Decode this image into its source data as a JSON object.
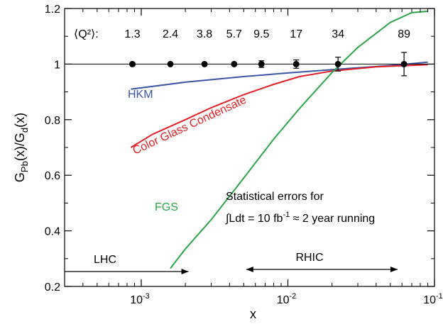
{
  "chart_data": {
    "type": "line",
    "xlabel": "x",
    "ylabel": "G_Pb(x)/G_d(x)",
    "xscale": "log",
    "xlim": [
      0.0003,
      0.1
    ],
    "ylim": [
      0.2,
      1.2
    ],
    "x_ticks": [
      {
        "value": 0.001,
        "base": "10",
        "exp": "-3"
      },
      {
        "value": 0.01,
        "base": "10",
        "exp": "-2"
      },
      {
        "value": 0.1,
        "base": "10",
        "exp": "-1"
      }
    ],
    "y_ticks": [
      {
        "value": 0.2,
        "label": "0.2"
      },
      {
        "value": 0.4,
        "label": "0.4"
      },
      {
        "value": 0.6,
        "label": "0.6"
      },
      {
        "value": 0.8,
        "label": "0.8"
      },
      {
        "value": 1.0,
        "label": "1"
      },
      {
        "value": 1.2,
        "label": "1.2"
      }
    ],
    "reference_line": 1.0,
    "q2_prefix": "⟨Q²⟩:",
    "q2_values": [
      "1.3",
      "2.4",
      "3.8",
      "5.7",
      "9.5",
      "17",
      "34",
      "89"
    ],
    "points": [
      {
        "x": 0.00087,
        "y": 1.0,
        "err": 0.0,
        "q2": "1.3"
      },
      {
        "x": 0.00158,
        "y": 1.0,
        "err": 0.0,
        "q2": "2.4"
      },
      {
        "x": 0.0027,
        "y": 1.0,
        "err": 0.0,
        "q2": "3.8"
      },
      {
        "x": 0.0043,
        "y": 1.0,
        "err": 0.0,
        "q2": "5.7"
      },
      {
        "x": 0.0066,
        "y": 1.0,
        "err": 0.012,
        "q2": "9.5"
      },
      {
        "x": 0.0114,
        "y": 1.0,
        "err": 0.015,
        "q2": "17"
      },
      {
        "x": 0.022,
        "y": 1.0,
        "err": 0.025,
        "q2": "34"
      },
      {
        "x": 0.062,
        "y": 1.0,
        "err": 0.042,
        "q2": "89"
      }
    ],
    "series": [
      {
        "name": "HKM",
        "color": "#3a55a4",
        "points": [
          [
            0.00085,
            0.91
          ],
          [
            0.002,
            0.935
          ],
          [
            0.005,
            0.955
          ],
          [
            0.01,
            0.968
          ],
          [
            0.02,
            0.98
          ],
          [
            0.05,
            0.995
          ],
          [
            0.09,
            1.007
          ]
        ]
      },
      {
        "name": "Color Glass Condensate",
        "color": "#e31e25",
        "points": [
          [
            0.00085,
            0.7
          ],
          [
            0.0012,
            0.748
          ],
          [
            0.002,
            0.8
          ],
          [
            0.003,
            0.843
          ],
          [
            0.005,
            0.89
          ],
          [
            0.008,
            0.927
          ],
          [
            0.012,
            0.955
          ],
          [
            0.02,
            0.975
          ],
          [
            0.04,
            0.99
          ],
          [
            0.09,
            0.998
          ]
        ]
      },
      {
        "name": "FGS",
        "color": "#2aa546",
        "points": [
          [
            0.00158,
            0.265
          ],
          [
            0.002,
            0.335
          ],
          [
            0.003,
            0.44
          ],
          [
            0.005,
            0.59
          ],
          [
            0.008,
            0.73
          ],
          [
            0.012,
            0.84
          ],
          [
            0.02,
            0.97
          ],
          [
            0.03,
            1.06
          ],
          [
            0.05,
            1.15
          ],
          [
            0.07,
            1.185
          ],
          [
            0.09,
            1.19
          ]
        ]
      }
    ],
    "annotations": {
      "stat_line1": "Statistical errors for",
      "stat_line2_prefix": "∫Ldt = 10 fb",
      "stat_line2_sup": "-1",
      "stat_line2_suffix": " ≈ 2 year running",
      "lhc": "LHC",
      "rhic": "RHIC"
    },
    "ranges": {
      "lhc": [
        0.0003,
        0.0021
      ],
      "rhic": [
        0.0052,
        0.056
      ]
    }
  }
}
